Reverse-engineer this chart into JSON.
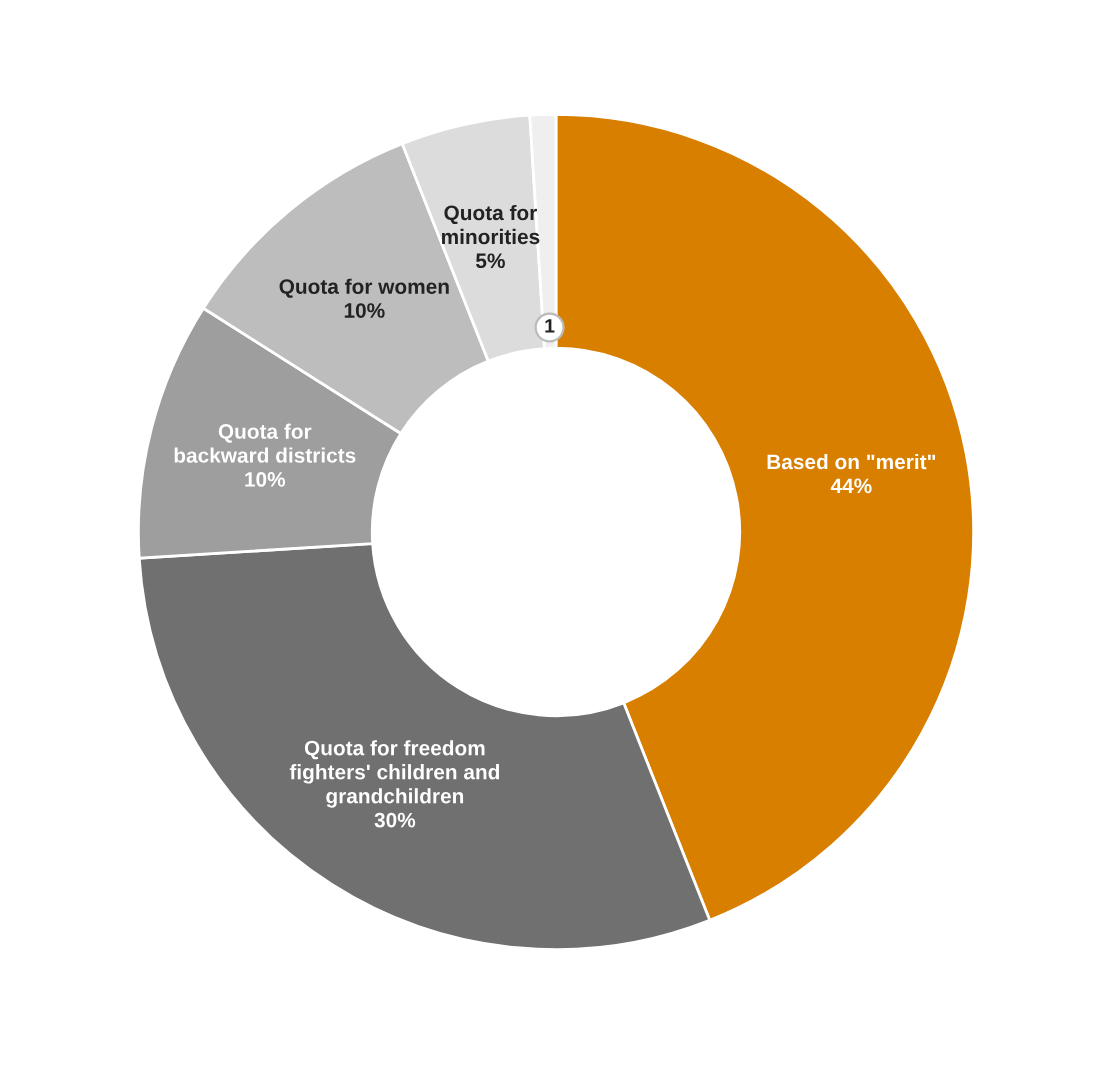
{
  "chart_data": {
    "type": "donut",
    "categories": [
      "Based on \"merit\"",
      "Quota for freedom\nfighters' children and\ngrandchildren",
      "Quota for\nbackward districts",
      "Quota for women",
      "Quota for\nminorities",
      null
    ],
    "values": [
      44,
      30,
      10,
      10,
      5,
      1
    ],
    "value_labels": [
      "44%",
      "30%",
      "10%",
      "10%",
      "5%",
      "1"
    ],
    "colors": [
      "#d97f00",
      "#707070",
      "#9e9e9e",
      "#bdbdbd",
      "#dcdcdc",
      "#efefef"
    ],
    "legend": false
  }
}
